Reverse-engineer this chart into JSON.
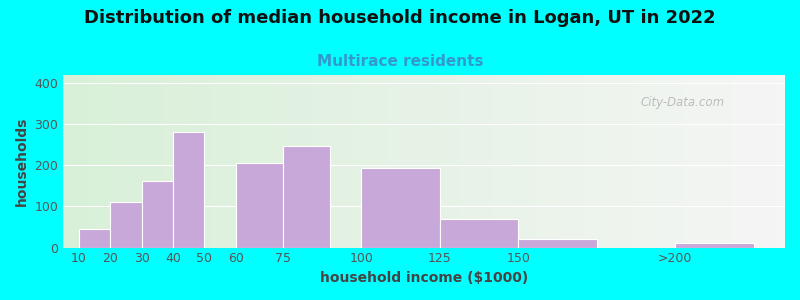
{
  "title": "Distribution of median household income in Logan, UT in 2022",
  "subtitle": "Multirace residents",
  "xlabel": "household income ($1000)",
  "ylabel": "households",
  "background_outer": "#00FFFF",
  "bar_color": "#c8a8d8",
  "bar_edge_color": "#ffffff",
  "categories": [
    "10",
    "20",
    "30",
    "40",
    "50",
    "60",
    "75",
    "100",
    "125",
    "150",
    ">200"
  ],
  "values": [
    45,
    112,
    163,
    282,
    0,
    207,
    247,
    193,
    70,
    20,
    12
  ],
  "bar_positions": [
    10,
    20,
    30,
    40,
    50,
    60,
    75,
    100,
    125,
    150,
    200
  ],
  "bar_widths": [
    10,
    10,
    10,
    10,
    10,
    15,
    15,
    25,
    25,
    25,
    25
  ],
  "ylim": [
    0,
    420
  ],
  "yticks": [
    0,
    100,
    200,
    300,
    400
  ],
  "watermark": "City-Data.com",
  "title_fontsize": 13,
  "subtitle_fontsize": 11,
  "axis_fontsize": 10,
  "tick_fontsize": 9
}
